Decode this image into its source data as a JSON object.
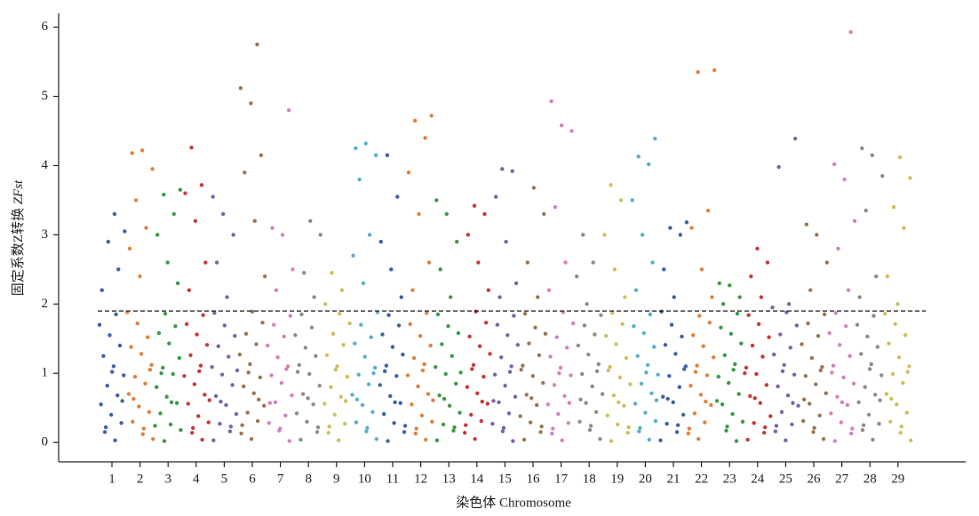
{
  "chart_data": {
    "type": "manhattan",
    "y_label": "固定系数Z转换 ",
    "y_label_italic": "ZFst",
    "x_label": "染色体 Chromosome",
    "ylim": [
      -0.28,
      6.2
    ],
    "yticks": [
      0,
      1,
      2,
      3,
      4,
      5,
      6
    ],
    "threshold": 1.9,
    "series": [
      {
        "name": "1",
        "color": "#3e62a6",
        "values": [
          0.03,
          0.15,
          0.28,
          0.4,
          0.55,
          0.68,
          0.82,
          0.97,
          1.1,
          1.25,
          1.4,
          1.55,
          1.7,
          1.85,
          0.22,
          0.6,
          1.02,
          2.2,
          2.5,
          2.9,
          3.05,
          3.3
        ]
      },
      {
        "name": "2",
        "color": "#e0823d",
        "values": [
          0.05,
          0.12,
          0.3,
          0.44,
          0.52,
          0.7,
          0.85,
          0.95,
          1.12,
          1.28,
          1.38,
          1.52,
          1.72,
          1.88,
          0.2,
          0.63,
          1.05,
          2.4,
          2.8,
          3.1,
          3.5,
          3.95,
          4.22,
          4.18
        ]
      },
      {
        "name": "3",
        "color": "#3c9a4a",
        "values": [
          0.02,
          0.18,
          0.26,
          0.42,
          0.57,
          0.66,
          0.8,
          0.99,
          1.08,
          1.22,
          1.43,
          1.58,
          1.68,
          1.86,
          0.24,
          0.58,
          1.0,
          2.3,
          2.6,
          3.0,
          3.3,
          3.58,
          3.65
        ]
      },
      {
        "name": "4",
        "color": "#c83a3a",
        "values": [
          0.04,
          0.14,
          0.29,
          0.38,
          0.56,
          0.69,
          0.84,
          0.96,
          1.11,
          1.26,
          1.41,
          1.56,
          1.71,
          1.84,
          0.21,
          0.61,
          1.03,
          2.2,
          2.6,
          3.2,
          3.6,
          3.72,
          4.26
        ]
      },
      {
        "name": "5",
        "color": "#7a64aa",
        "values": [
          0.03,
          0.16,
          0.27,
          0.41,
          0.54,
          0.67,
          0.83,
          0.98,
          1.09,
          1.24,
          1.39,
          1.54,
          1.69,
          1.87,
          0.23,
          0.59,
          1.04,
          2.1,
          2.6,
          3.0,
          3.3,
          3.55
        ]
      },
      {
        "name": "6",
        "color": "#9b7652",
        "values": [
          0.05,
          0.13,
          0.31,
          0.43,
          0.53,
          0.71,
          0.81,
          0.94,
          1.13,
          1.27,
          1.42,
          1.57,
          1.73,
          1.89,
          0.25,
          0.62,
          1.01,
          2.4,
          3.2,
          3.9,
          4.15,
          4.9,
          5.12,
          5.75
        ]
      },
      {
        "name": "7",
        "color": "#d781bd",
        "values": [
          0.02,
          0.17,
          0.28,
          0.39,
          0.58,
          0.68,
          0.86,
          0.97,
          1.1,
          1.23,
          1.4,
          1.53,
          1.7,
          1.83,
          0.2,
          0.57,
          1.06,
          2.2,
          2.5,
          3.0,
          3.1,
          4.8
        ]
      },
      {
        "name": "8",
        "color": "#8c8c8c",
        "values": [
          0.04,
          0.15,
          0.3,
          0.42,
          0.55,
          0.7,
          0.82,
          0.99,
          1.12,
          1.25,
          1.37,
          1.55,
          1.66,
          1.85,
          0.22,
          0.64,
          1.02,
          2.1,
          2.45,
          3.0,
          3.2
        ]
      },
      {
        "name": "9",
        "color": "#cfbf5f",
        "values": [
          0.03,
          0.14,
          0.27,
          0.4,
          0.56,
          0.66,
          0.8,
          0.95,
          1.1,
          1.26,
          1.41,
          1.57,
          1.72,
          1.86,
          0.23,
          0.6,
          1.05,
          2.0,
          2.2,
          2.45
        ]
      },
      {
        "name": "10",
        "color": "#5aaecb",
        "values": [
          0.05,
          0.16,
          0.29,
          0.44,
          0.54,
          0.69,
          0.84,
          0.98,
          1.08,
          1.24,
          1.43,
          1.52,
          1.7,
          1.88,
          0.21,
          0.62,
          1.0,
          2.3,
          2.7,
          3.0,
          3.8,
          4.15,
          4.32,
          4.25
        ]
      },
      {
        "name": "11",
        "color": "#3e62a6",
        "values": [
          0.02,
          0.15,
          0.28,
          0.41,
          0.57,
          0.67,
          0.83,
          0.96,
          1.11,
          1.27,
          1.38,
          1.56,
          1.69,
          1.84,
          0.24,
          0.58,
          1.03,
          2.1,
          2.5,
          2.9,
          3.55,
          4.15
        ]
      },
      {
        "name": "12",
        "color": "#e0823d",
        "values": [
          0.04,
          0.13,
          0.3,
          0.39,
          0.55,
          0.7,
          0.81,
          0.97,
          1.13,
          1.22,
          1.4,
          1.54,
          1.71,
          1.87,
          0.2,
          0.61,
          1.04,
          2.2,
          2.6,
          3.3,
          3.9,
          4.4,
          4.65,
          4.72
        ]
      },
      {
        "name": "13",
        "color": "#3c9a4a",
        "values": [
          0.03,
          0.17,
          0.26,
          0.43,
          0.53,
          0.68,
          0.85,
          0.99,
          1.09,
          1.25,
          1.42,
          1.58,
          1.68,
          1.85,
          0.22,
          0.63,
          1.01,
          2.1,
          2.5,
          2.9,
          3.3,
          3.5
        ]
      },
      {
        "name": "14",
        "color": "#c83a3a",
        "values": [
          0.05,
          0.14,
          0.31,
          0.4,
          0.56,
          0.71,
          0.8,
          0.95,
          1.12,
          1.28,
          1.39,
          1.53,
          1.73,
          1.89,
          0.25,
          0.59,
          1.06,
          2.2,
          2.6,
          3.0,
          3.3,
          3.42
        ]
      },
      {
        "name": "15",
        "color": "#7a64aa",
        "values": [
          0.02,
          0.16,
          0.27,
          0.42,
          0.58,
          0.66,
          0.82,
          0.98,
          1.1,
          1.23,
          1.41,
          1.55,
          1.7,
          1.83,
          0.21,
          0.6,
          1.02,
          2.1,
          2.3,
          2.9,
          3.55,
          3.92,
          3.95
        ]
      },
      {
        "name": "16",
        "color": "#9b7652",
        "values": [
          0.04,
          0.15,
          0.29,
          0.38,
          0.54,
          0.69,
          0.86,
          0.96,
          1.11,
          1.26,
          1.43,
          1.57,
          1.66,
          1.86,
          0.23,
          0.64,
          1.05,
          2.1,
          2.6,
          3.3,
          3.68
        ]
      },
      {
        "name": "17",
        "color": "#d781bd",
        "values": [
          0.03,
          0.13,
          0.28,
          0.41,
          0.55,
          0.67,
          0.83,
          0.97,
          1.08,
          1.24,
          1.37,
          1.52,
          1.72,
          1.88,
          0.2,
          0.57,
          1.0,
          2.2,
          2.6,
          3.4,
          4.5,
          4.58,
          4.93
        ]
      },
      {
        "name": "18",
        "color": "#8c8c8c",
        "values": [
          0.05,
          0.18,
          0.3,
          0.44,
          0.57,
          0.7,
          0.81,
          0.99,
          1.13,
          1.27,
          1.4,
          1.56,
          1.69,
          1.84,
          0.24,
          0.62,
          1.03,
          2.0,
          2.4,
          2.6,
          3.0
        ]
      },
      {
        "name": "19",
        "color": "#cfbf5f",
        "values": [
          0.02,
          0.14,
          0.26,
          0.39,
          0.53,
          0.68,
          0.84,
          0.94,
          1.09,
          1.22,
          1.42,
          1.54,
          1.71,
          1.87,
          0.22,
          0.58,
          1.04,
          2.1,
          2.5,
          3.0,
          3.5,
          3.72
        ]
      },
      {
        "name": "20",
        "color": "#5aaecb",
        "values": [
          0.04,
          0.16,
          0.31,
          0.43,
          0.56,
          0.71,
          0.85,
          0.98,
          1.12,
          1.25,
          1.38,
          1.58,
          1.68,
          1.85,
          0.21,
          0.61,
          1.01,
          2.2,
          2.6,
          3.0,
          3.5,
          4.02,
          4.13,
          4.39
        ]
      },
      {
        "name": "21",
        "color": "#3e62a6",
        "values": [
          0.03,
          0.15,
          0.27,
          0.4,
          0.58,
          0.66,
          0.8,
          0.96,
          1.1,
          1.28,
          1.41,
          1.53,
          1.7,
          1.89,
          0.25,
          0.63,
          1.06,
          2.1,
          2.5,
          3.0,
          3.1,
          3.18
        ]
      },
      {
        "name": "22",
        "color": "#e0823d",
        "values": [
          0.05,
          0.13,
          0.29,
          0.42,
          0.54,
          0.69,
          0.82,
          0.97,
          1.11,
          1.23,
          1.39,
          1.55,
          1.73,
          1.83,
          0.2,
          0.59,
          1.02,
          2.1,
          2.5,
          3.1,
          3.35,
          5.35,
          5.38
        ]
      },
      {
        "name": "23",
        "color": "#3c9a4a",
        "values": [
          0.02,
          0.17,
          0.3,
          0.41,
          0.55,
          0.7,
          0.86,
          0.95,
          1.13,
          1.26,
          1.43,
          1.57,
          1.66,
          1.86,
          0.23,
          0.6,
          1.05,
          2.0,
          2.1,
          2.27,
          2.3
        ]
      },
      {
        "name": "24",
        "color": "#c83a3a",
        "values": [
          0.04,
          0.14,
          0.28,
          0.38,
          0.57,
          0.67,
          0.83,
          0.99,
          1.08,
          1.24,
          1.4,
          1.52,
          1.71,
          1.84,
          0.22,
          0.64,
          1.0,
          2.1,
          2.4,
          2.6,
          2.8
        ]
      },
      {
        "name": "25",
        "color": "#7a64aa",
        "values": [
          0.03,
          0.16,
          0.26,
          0.44,
          0.53,
          0.68,
          0.81,
          0.98,
          1.12,
          1.27,
          1.37,
          1.56,
          1.69,
          1.88,
          0.24,
          0.57,
          1.03,
          1.95,
          2.0,
          3.98,
          4.39
        ]
      },
      {
        "name": "26",
        "color": "#9b7652",
        "values": [
          0.05,
          0.15,
          0.31,
          0.39,
          0.56,
          0.71,
          0.84,
          0.96,
          1.09,
          1.22,
          1.42,
          1.54,
          1.72,
          1.85,
          0.21,
          0.62,
          1.04,
          2.2,
          2.6,
          3.0,
          3.15
        ]
      },
      {
        "name": "27",
        "color": "#d781bd",
        "values": [
          0.02,
          0.13,
          0.29,
          0.42,
          0.54,
          0.66,
          0.85,
          0.94,
          1.11,
          1.25,
          1.41,
          1.58,
          1.68,
          1.87,
          0.2,
          0.58,
          1.01,
          2.2,
          2.8,
          3.2,
          3.8,
          4.02,
          5.93
        ]
      },
      {
        "name": "28",
        "color": "#8c8c8c",
        "values": [
          0.04,
          0.18,
          0.27,
          0.4,
          0.58,
          0.69,
          0.8,
          0.97,
          1.13,
          1.28,
          1.38,
          1.53,
          1.7,
          1.83,
          0.25,
          0.61,
          1.06,
          2.1,
          2.4,
          3.35,
          3.85,
          4.15,
          4.25
        ]
      },
      {
        "name": "29",
        "color": "#cfbf5f",
        "values": [
          0.03,
          0.14,
          0.3,
          0.43,
          0.55,
          0.7,
          0.86,
          0.99,
          1.1,
          1.23,
          1.43,
          1.55,
          1.71,
          1.86,
          0.23,
          0.63,
          1.02,
          2.0,
          2.4,
          3.1,
          3.4,
          3.82,
          4.12
        ]
      }
    ]
  }
}
